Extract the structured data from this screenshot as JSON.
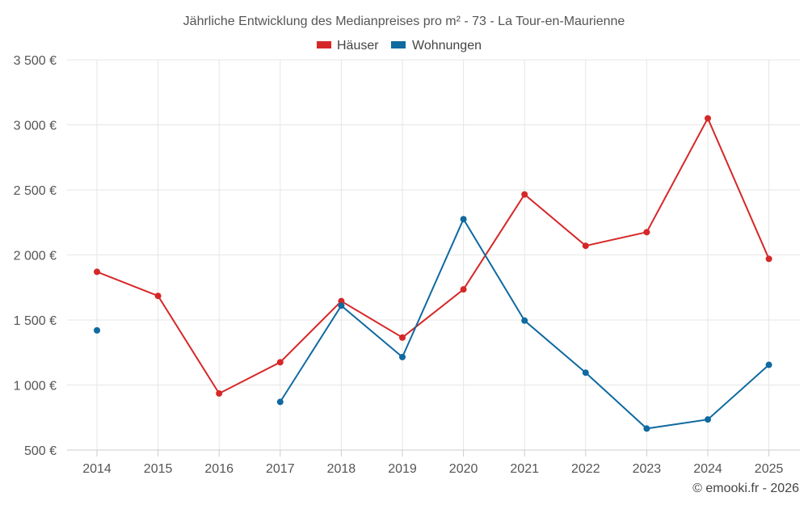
{
  "chart_data": {
    "type": "line",
    "title": "Jährliche Entwicklung des Medianpreises pro m² - 73 - La Tour-en-Maurienne",
    "categories": [
      "2014",
      "2015",
      "2016",
      "2017",
      "2018",
      "2019",
      "2020",
      "2021",
      "2022",
      "2023",
      "2024",
      "2025"
    ],
    "series": [
      {
        "name": "Häuser",
        "color": "#d62728",
        "values": [
          1870,
          1685,
          935,
          1175,
          1645,
          1365,
          1735,
          2465,
          2070,
          2175,
          3050,
          1970
        ]
      },
      {
        "name": "Wohnungen",
        "color": "#0f6aa0",
        "values": [
          1420,
          null,
          null,
          870,
          1610,
          1215,
          2275,
          1495,
          1095,
          665,
          735,
          1155
        ]
      }
    ],
    "yticks": [
      500,
      1000,
      1500,
      2000,
      2500,
      3000,
      3500
    ],
    "ytick_labels": [
      "500 €",
      "1 000 €",
      "1 500 €",
      "2 000 €",
      "2 500 €",
      "3 000 €",
      "3 500 €"
    ],
    "ylim": [
      500,
      3500
    ],
    "xlabel": "",
    "ylabel": "",
    "legend": "top-center",
    "grid": true
  },
  "copyright": "© emooki.fr - 2026"
}
